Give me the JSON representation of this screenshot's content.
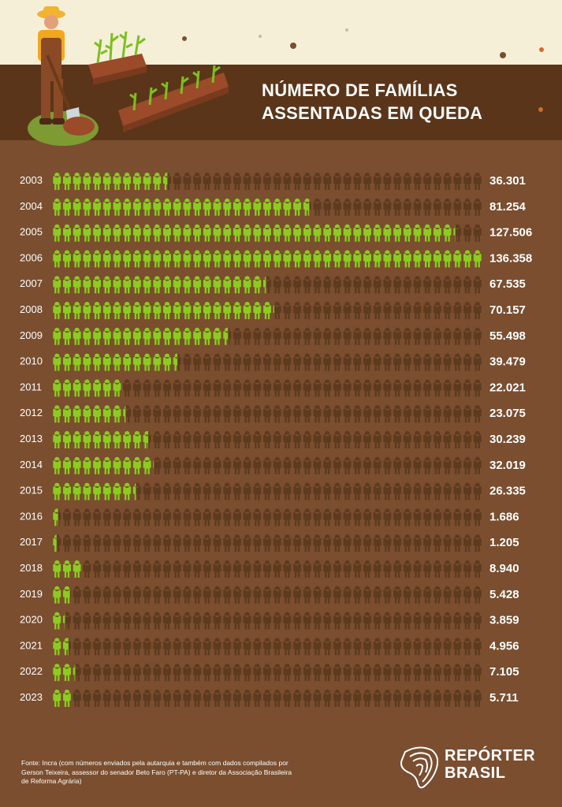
{
  "title_line1": "NÚMERO DE FAMÍLIAS",
  "title_line2": "ASSENTADAS EM QUEDA",
  "source_text": "Fonte: Incra (com números enviados pela autarquia e também com dados compilados por Gerson Teixeira, assessor do senador Beto Faro (PT-PA) e diretor da Associação Brasileira de Reforma Agrária)",
  "brand": {
    "line1": "REPÓRTER",
    "line2": "BRASIL"
  },
  "colors": {
    "background": "#7a4e2f",
    "header": "#5a3519",
    "filled_icon": "#8ccc1f",
    "empty_icon": "#5e3a1f",
    "text": "#ffffff"
  },
  "chart_data": {
    "type": "bar",
    "style": "pictogram",
    "categories": [
      "2003",
      "2004",
      "2005",
      "2006",
      "2007",
      "2008",
      "2009",
      "2010",
      "2011",
      "2012",
      "2013",
      "2014",
      "2015",
      "2016",
      "2017",
      "2018",
      "2019",
      "2020",
      "2021",
      "2022",
      "2023"
    ],
    "values": [
      36301,
      81254,
      127506,
      136358,
      67535,
      70157,
      55498,
      39479,
      22021,
      23075,
      30239,
      32019,
      26335,
      1686,
      1205,
      8940,
      5428,
      3859,
      4956,
      7105,
      5711
    ],
    "value_labels": [
      "36.301",
      "81.254",
      "127.506",
      "136.358",
      "67.535",
      "70.157",
      "55.498",
      "39.479",
      "22.021",
      "23.075",
      "30.239",
      "32.019",
      "26.335",
      "1.686",
      "1.205",
      "8.940",
      "5.428",
      "3.859",
      "4.956",
      "7.105",
      "5.711"
    ],
    "xlim": [
      0,
      136358
    ],
    "title": "NÚMERO DE FAMÍLIAS ASSENTADAS EM QUEDA"
  }
}
